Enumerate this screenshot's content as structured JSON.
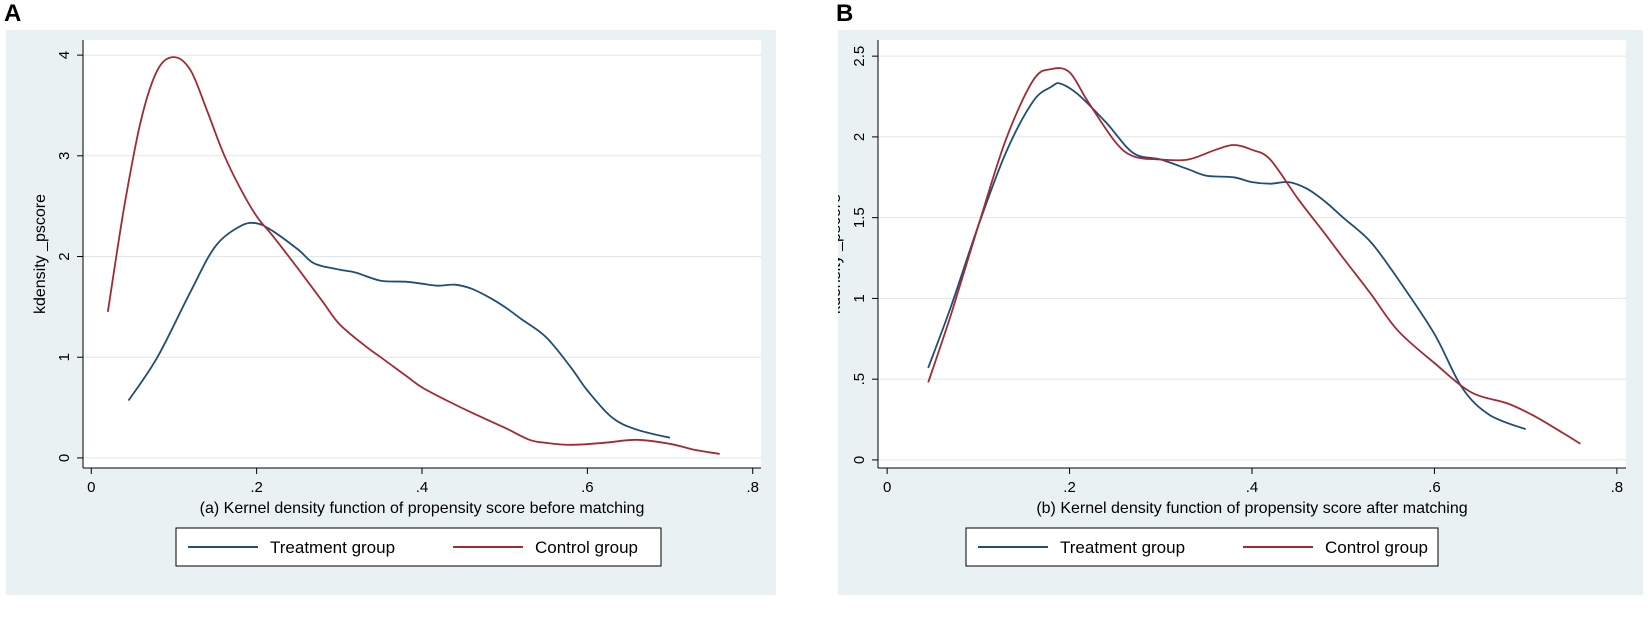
{
  "panels": {
    "a_letter": "A",
    "b_letter": "B"
  },
  "colors": {
    "treatment": "#1f4e79",
    "control": "#a32a33",
    "bg": "#e9f1f3",
    "plot": "#ffffff",
    "grid": "#dde6ea"
  },
  "chart_data": [
    {
      "type": "line",
      "title": "(a) Kernel density function of propensity score before matching",
      "xlabel": "(a) Kernel density function of propensity score before matching",
      "ylabel": "kdensity _pscore",
      "xlim": [
        -0.01,
        0.81
      ],
      "ylim": [
        -0.1,
        4.15
      ],
      "xticks": [
        0,
        0.2,
        0.4,
        0.6,
        0.8
      ],
      "xtick_labels": [
        "0",
        ".2",
        ".4",
        ".6",
        ".8"
      ],
      "yticks": [
        0,
        1,
        2,
        3,
        4
      ],
      "ytick_labels": [
        "0",
        "1",
        "2",
        "3",
        "4"
      ],
      "grid": true,
      "legend": "bottom",
      "series": [
        {
          "name": "Treatment group",
          "color": "#1f4e79",
          "x": [
            0.045,
            0.08,
            0.12,
            0.15,
            0.18,
            0.2,
            0.22,
            0.25,
            0.27,
            0.3,
            0.32,
            0.35,
            0.38,
            0.4,
            0.42,
            0.44,
            0.46,
            0.48,
            0.5,
            0.52,
            0.55,
            0.58,
            0.6,
            0.63,
            0.66,
            0.7
          ],
          "y": [
            0.57,
            1.0,
            1.65,
            2.1,
            2.3,
            2.33,
            2.25,
            2.07,
            1.93,
            1.87,
            1.84,
            1.76,
            1.75,
            1.73,
            1.71,
            1.72,
            1.68,
            1.6,
            1.5,
            1.38,
            1.2,
            0.9,
            0.67,
            0.4,
            0.28,
            0.2
          ]
        },
        {
          "name": "Control group",
          "color": "#a32a33",
          "x": [
            0.02,
            0.04,
            0.06,
            0.08,
            0.1,
            0.12,
            0.14,
            0.16,
            0.18,
            0.2,
            0.22,
            0.25,
            0.28,
            0.3,
            0.33,
            0.35,
            0.38,
            0.4,
            0.43,
            0.46,
            0.5,
            0.53,
            0.55,
            0.58,
            0.62,
            0.66,
            0.7,
            0.73,
            0.76
          ],
          "y": [
            1.45,
            2.5,
            3.35,
            3.85,
            3.98,
            3.85,
            3.45,
            3.02,
            2.68,
            2.4,
            2.2,
            1.88,
            1.55,
            1.33,
            1.12,
            1.0,
            0.82,
            0.7,
            0.57,
            0.45,
            0.3,
            0.18,
            0.15,
            0.13,
            0.15,
            0.18,
            0.14,
            0.08,
            0.04
          ]
        }
      ]
    },
    {
      "type": "line",
      "title": "(b) Kernel density function of propensity score after matching",
      "xlabel": "(b) Kernel density function of propensity score after matching",
      "ylabel": "kdensity _pscore",
      "xlim": [
        -0.01,
        0.81
      ],
      "ylim": [
        -0.05,
        2.6
      ],
      "xticks": [
        0,
        0.2,
        0.4,
        0.6,
        0.8
      ],
      "xtick_labels": [
        "0",
        ".2",
        ".4",
        ".6",
        ".8"
      ],
      "yticks": [
        0,
        0.5,
        1,
        1.5,
        2,
        2.5
      ],
      "ytick_labels": [
        "0",
        ".5",
        "1",
        "1.5",
        "2",
        "2.5"
      ],
      "grid": true,
      "legend": "bottom",
      "series": [
        {
          "name": "Treatment group",
          "color": "#1f4e79",
          "x": [
            0.045,
            0.07,
            0.1,
            0.13,
            0.16,
            0.18,
            0.19,
            0.21,
            0.24,
            0.27,
            0.3,
            0.33,
            0.35,
            0.38,
            0.4,
            0.42,
            0.44,
            0.46,
            0.48,
            0.5,
            0.53,
            0.56,
            0.6,
            0.63,
            0.66,
            0.7
          ],
          "y": [
            0.57,
            0.95,
            1.45,
            1.9,
            2.22,
            2.31,
            2.33,
            2.26,
            2.09,
            1.9,
            1.86,
            1.8,
            1.76,
            1.75,
            1.72,
            1.71,
            1.72,
            1.68,
            1.6,
            1.5,
            1.35,
            1.12,
            0.78,
            0.45,
            0.28,
            0.19
          ]
        },
        {
          "name": "Control group",
          "color": "#a32a33",
          "x": [
            0.045,
            0.07,
            0.1,
            0.13,
            0.16,
            0.18,
            0.2,
            0.22,
            0.25,
            0.27,
            0.3,
            0.33,
            0.36,
            0.38,
            0.4,
            0.42,
            0.45,
            0.48,
            0.5,
            0.53,
            0.56,
            0.6,
            0.64,
            0.68,
            0.71,
            0.74,
            0.76
          ],
          "y": [
            0.48,
            0.9,
            1.45,
            1.98,
            2.35,
            2.42,
            2.4,
            2.22,
            1.97,
            1.88,
            1.86,
            1.86,
            1.92,
            1.95,
            1.92,
            1.86,
            1.62,
            1.4,
            1.25,
            1.03,
            0.8,
            0.6,
            0.42,
            0.35,
            0.27,
            0.17,
            0.1
          ]
        }
      ]
    }
  ]
}
